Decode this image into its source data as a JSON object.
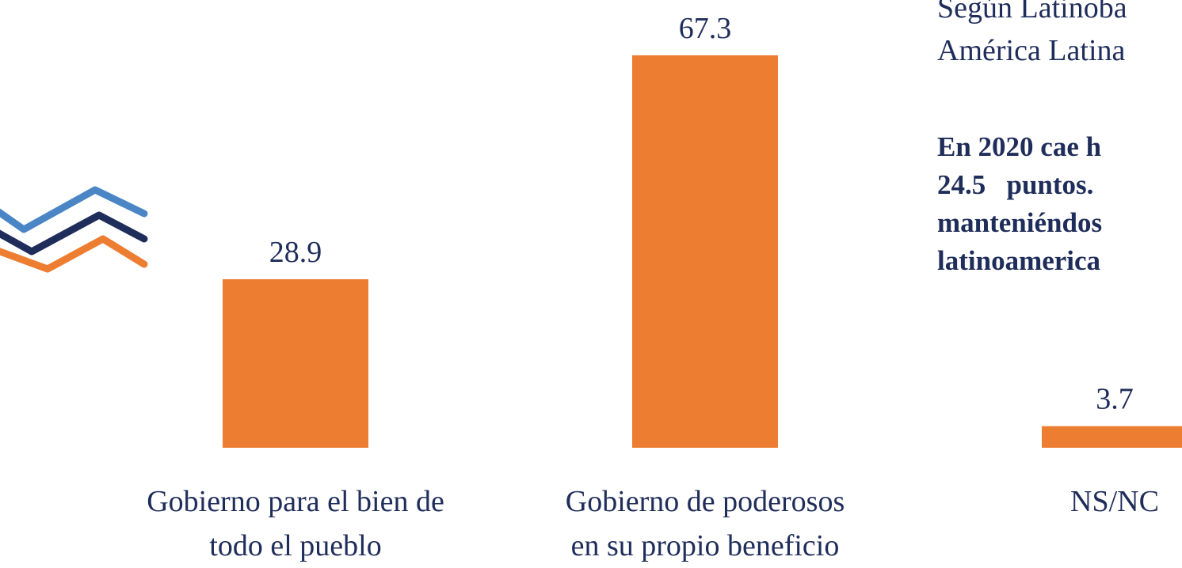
{
  "chart_data": {
    "type": "bar",
    "categories": [
      "Gobierno para el bien de\ntodo el pueblo",
      "Gobierno de poderosos\nen su propio beneficio",
      "NS/NC"
    ],
    "values": [
      28.9,
      67.3,
      3.7
    ],
    "color": "#ed7d31",
    "ylim": [
      0,
      70
    ],
    "annotations": [
      "Según Latinoba",
      "América Latina"
    ],
    "highlight": [
      "En 2020 cae h",
      "24.5   puntos.",
      "manteniéndos",
      "latinoamerica"
    ]
  }
}
